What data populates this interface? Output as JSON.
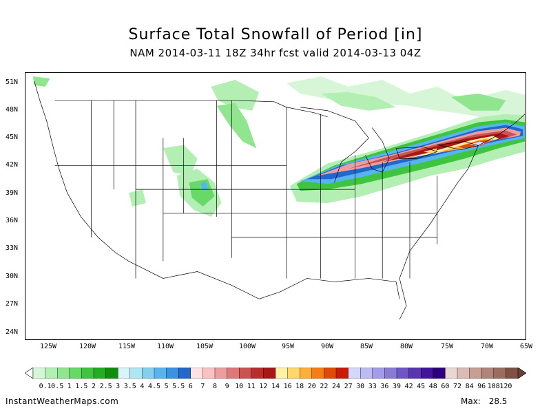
{
  "title": "Surface Total Snowfall of Period [in]",
  "subtitle": "NAM 2014-03-11 18Z 34hr fcst valid 2014-03-13 04Z",
  "footer": {
    "site": "InstantWeatherMaps.com",
    "max_label": "Max:",
    "max_value": "28.5"
  },
  "lat_labels": [
    "51N",
    "48N",
    "45N",
    "42N",
    "39N",
    "36N",
    "33N",
    "30N",
    "27N",
    "24N"
  ],
  "lon_labels": [
    "125W",
    "120W",
    "115W",
    "110W",
    "105W",
    "100W",
    "95W",
    "90W",
    "85W",
    "80W",
    "75W",
    "70W",
    "65W"
  ],
  "legend": {
    "labels": [
      "0.1",
      "0.5",
      "1",
      "1.5",
      "2",
      "2.5",
      "3",
      "3.5",
      "4",
      "4.5",
      "5",
      "5.5",
      "6",
      "7",
      "8",
      "9",
      "10",
      "11",
      "12",
      "14",
      "16",
      "18",
      "20",
      "22",
      "24",
      "27",
      "30",
      "33",
      "36",
      "39",
      "42",
      "45",
      "48",
      "60",
      "72",
      "84",
      "96",
      "108",
      "120"
    ],
    "colors": [
      "#d7f5d7",
      "#b3eeb3",
      "#8fe68f",
      "#66d966",
      "#3fc43f",
      "#22ac22",
      "#0d8f0d",
      "#d8f4f8",
      "#aee6f2",
      "#82cfee",
      "#58b4ec",
      "#3a92e0",
      "#2068cc",
      "#ffe3e3",
      "#f8c2c2",
      "#ec9e9e",
      "#dd7878",
      "#cc5252",
      "#b82d2d",
      "#a81616",
      "#fff2a6",
      "#ffd869",
      "#ffae3a",
      "#f77c14",
      "#e04a08",
      "#c81c04",
      "#d6d6f8",
      "#bcbcf2",
      "#a39ce8",
      "#8a7ad8",
      "#6e56c6",
      "#5836b0",
      "#42169a",
      "#2c007e",
      "#e9d7d3",
      "#d8bbb4",
      "#c79e96",
      "#b0847a",
      "#9a6d62",
      "#7d5145"
    ]
  }
}
